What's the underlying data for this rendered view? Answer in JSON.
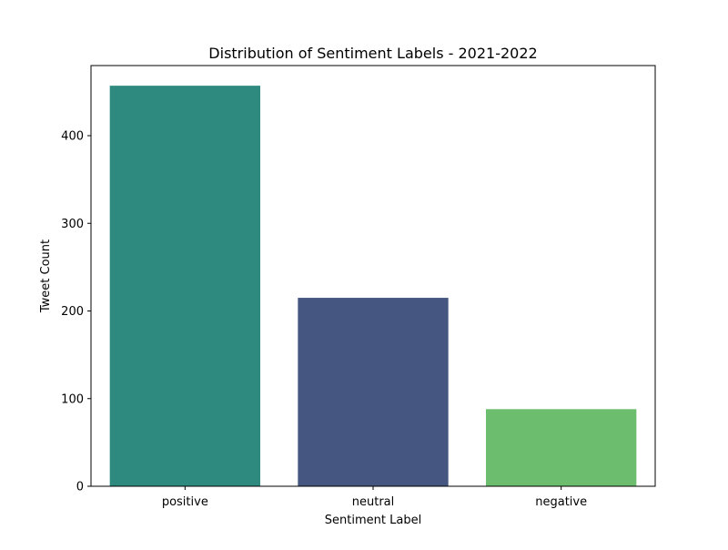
{
  "chart_data": {
    "type": "bar",
    "title": "Distribution of Sentiment Labels - 2021-2022",
    "xlabel": "Sentiment Label",
    "ylabel": "Tweet Count",
    "categories": [
      "positive",
      "neutral",
      "negative"
    ],
    "values": [
      457,
      215,
      88
    ],
    "colors": [
      "#2e8a7f",
      "#455781",
      "#6cbd6e"
    ],
    "ylim": [
      0,
      480
    ],
    "yticks": [
      0,
      100,
      200,
      300,
      400
    ],
    "grid": false,
    "legend": "none"
  }
}
